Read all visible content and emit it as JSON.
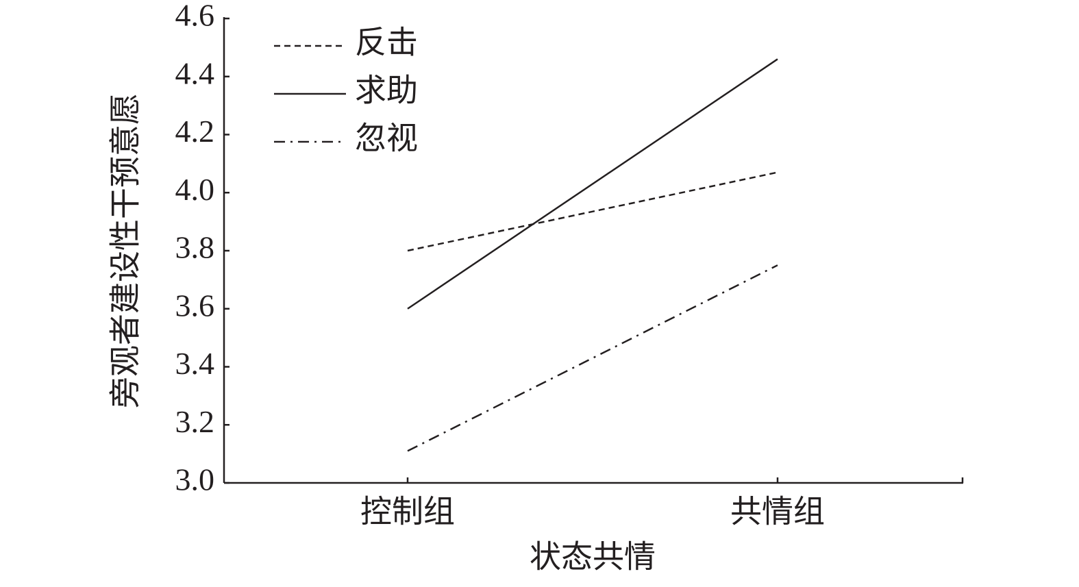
{
  "chart_data": {
    "type": "line",
    "x_label": "状态共情",
    "y_label": "旁观者建设性干预意愿",
    "categories": [
      "控制组",
      "共情组"
    ],
    "series": [
      {
        "name": "反击",
        "color": "#231f20",
        "line_style": "dashed",
        "values": [
          3.8,
          4.07
        ]
      },
      {
        "name": "求助",
        "color": "#231f20",
        "line_style": "solid",
        "values": [
          3.6,
          4.46
        ]
      },
      {
        "name": "忽视",
        "color": "#231f20",
        "line_style": "dashdot",
        "values": [
          3.11,
          3.75
        ]
      }
    ],
    "ylim": [
      3.0,
      4.6
    ],
    "yticks": [
      {
        "value": 3.0,
        "label": "3.0"
      },
      3.2,
      3.4,
      3.6,
      3.8,
      {
        "value": 4.0,
        "label": "4.0"
      },
      4.2,
      4.4,
      4.6
    ],
    "grid": false,
    "legend": "top-left"
  }
}
